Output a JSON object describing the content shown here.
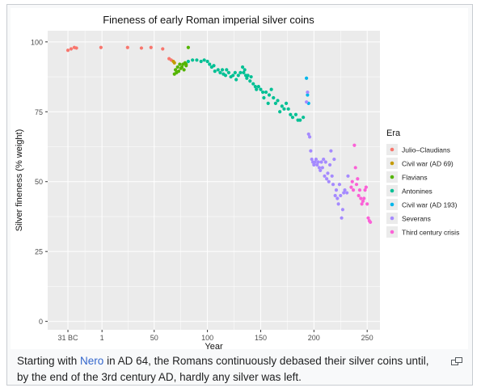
{
  "colors": {
    "panel_bg": "#ebebeb",
    "grid": "#ffffff",
    "link": "#3366cc",
    "eras": {
      "Julio–Claudians": "#f8766d",
      "Civil war (AD 69)": "#c49a00",
      "Flavians": "#53b400",
      "Antonines": "#00c094",
      "Civil war (AD 193)": "#00b6eb",
      "Severans": "#a58aff",
      "Third century crisis": "#fb61d7"
    }
  },
  "caption": {
    "text_before": "Starting with ",
    "link_text": "Nero",
    "text_after": " in AD 64, the Romans continuously debased their silver coins until, by the end of the 3rd century AD, hardly any silver was left."
  },
  "enlarge_icon": "enlarge-icon",
  "chart_data": {
    "type": "scatter",
    "title": "Fineness of early Roman imperial silver coins",
    "xlabel": "Year",
    "ylabel": "Silver fineness (% weight)",
    "xlim": [
      -50,
      262
    ],
    "ylim": [
      -3,
      104
    ],
    "x_ticks": [
      {
        "value": -31,
        "label": "31 BC"
      },
      {
        "value": 1,
        "label": "1"
      },
      {
        "value": 50,
        "label": "50"
      },
      {
        "value": 100,
        "label": "100"
      },
      {
        "value": 150,
        "label": "150"
      },
      {
        "value": 200,
        "label": "200"
      },
      {
        "value": 250,
        "label": "250"
      }
    ],
    "y_ticks": [
      0,
      25,
      50,
      75,
      100
    ],
    "grid": true,
    "legend_title": "Era",
    "legend_position": "right",
    "series": [
      {
        "name": "Julio–Claudians",
        "points": [
          [
            -31,
            97
          ],
          [
            -28,
            97.5
          ],
          [
            -25,
            98
          ],
          [
            -23,
            97.8
          ],
          [
            0,
            98
          ],
          [
            25,
            98
          ],
          [
            38,
            97.8
          ],
          [
            47,
            98
          ],
          [
            58,
            97.5
          ],
          [
            64,
            94
          ],
          [
            66,
            93.5
          ]
        ]
      },
      {
        "name": "Civil war (AD 69)",
        "points": [
          [
            68,
            93
          ],
          [
            69,
            92.5
          ]
        ]
      },
      {
        "name": "Flavians",
        "points": [
          [
            69,
            88.5
          ],
          [
            70,
            90
          ],
          [
            71,
            89
          ],
          [
            72,
            91
          ],
          [
            73,
            89.5
          ],
          [
            74,
            92
          ],
          [
            75,
            90.5
          ],
          [
            76,
            91
          ],
          [
            77,
            92
          ],
          [
            78,
            90
          ],
          [
            79,
            92.5
          ],
          [
            80,
            91.5
          ],
          [
            82,
            98
          ],
          [
            80,
            92
          ]
        ]
      },
      {
        "name": "Antonines",
        "points": [
          [
            82,
            93
          ],
          [
            86,
            93.5
          ],
          [
            90,
            93.5
          ],
          [
            94,
            93
          ],
          [
            97,
            93.5
          ],
          [
            100,
            93
          ],
          [
            102,
            92
          ],
          [
            104,
            91
          ],
          [
            106,
            91.5
          ],
          [
            107,
            89.5
          ],
          [
            110,
            90
          ],
          [
            112,
            89
          ],
          [
            114,
            90
          ],
          [
            115,
            88.5
          ],
          [
            117,
            88
          ],
          [
            118,
            90
          ],
          [
            120,
            89
          ],
          [
            122,
            87.5
          ],
          [
            124,
            88
          ],
          [
            126,
            89
          ],
          [
            127,
            86.5
          ],
          [
            129,
            88
          ],
          [
            131,
            89
          ],
          [
            133,
            91
          ],
          [
            134,
            89
          ],
          [
            135,
            90
          ],
          [
            136,
            88
          ],
          [
            137,
            87
          ],
          [
            138,
            88
          ],
          [
            140,
            86
          ],
          [
            141,
            87.5
          ],
          [
            143,
            85
          ],
          [
            145,
            84
          ],
          [
            146,
            83
          ],
          [
            148,
            84
          ],
          [
            150,
            83
          ],
          [
            152,
            82
          ],
          [
            153,
            80
          ],
          [
            155,
            82
          ],
          [
            157,
            78
          ],
          [
            158,
            81
          ],
          [
            160,
            83
          ],
          [
            162,
            80
          ],
          [
            164,
            78
          ],
          [
            166,
            79
          ],
          [
            168,
            75
          ],
          [
            170,
            77
          ],
          [
            172,
            76
          ],
          [
            174,
            78
          ],
          [
            176,
            76
          ],
          [
            178,
            74
          ],
          [
            180,
            73
          ],
          [
            183,
            74
          ],
          [
            185,
            72
          ],
          [
            187,
            72
          ],
          [
            190,
            73
          ]
        ]
      },
      {
        "name": "Civil war (AD 193)",
        "points": [
          [
            193,
            87
          ],
          [
            194,
            81
          ],
          [
            195,
            78
          ]
        ]
      },
      {
        "name": "Severans",
        "points": [
          [
            193,
            78.5
          ],
          [
            194,
            82
          ],
          [
            195,
            67
          ],
          [
            196,
            66
          ],
          [
            197,
            61
          ],
          [
            198,
            58
          ],
          [
            199,
            57
          ],
          [
            200,
            56
          ],
          [
            201,
            57
          ],
          [
            202,
            58
          ],
          [
            203,
            56
          ],
          [
            204,
            57
          ],
          [
            205,
            55
          ],
          [
            206,
            54
          ],
          [
            207,
            57
          ],
          [
            208,
            55
          ],
          [
            209,
            58
          ],
          [
            210,
            52
          ],
          [
            211,
            57
          ],
          [
            212,
            51
          ],
          [
            213,
            53
          ],
          [
            214,
            50
          ],
          [
            215,
            56
          ],
          [
            216,
            61
          ],
          [
            217,
            52
          ],
          [
            218,
            49
          ],
          [
            219,
            58
          ],
          [
            220,
            45
          ],
          [
            221,
            47
          ],
          [
            222,
            44
          ],
          [
            223,
            42
          ],
          [
            224,
            49
          ],
          [
            225,
            45
          ],
          [
            226,
            37
          ],
          [
            227,
            40
          ],
          [
            228,
            46
          ],
          [
            229,
            47
          ],
          [
            231,
            46
          ],
          [
            232,
            52
          ]
        ]
      },
      {
        "name": "Third century crisis",
        "points": [
          [
            235,
            48
          ],
          [
            236,
            50
          ],
          [
            237,
            47
          ],
          [
            238,
            63
          ],
          [
            239,
            55
          ],
          [
            240,
            49
          ],
          [
            241,
            51
          ],
          [
            242,
            45
          ],
          [
            243,
            47
          ],
          [
            244,
            44
          ],
          [
            245,
            42
          ],
          [
            246,
            43
          ],
          [
            247,
            44
          ],
          [
            248,
            47
          ],
          [
            249,
            48
          ],
          [
            250,
            42
          ],
          [
            251,
            37
          ],
          [
            252,
            36
          ],
          [
            253,
            35.5
          ]
        ]
      }
    ]
  }
}
